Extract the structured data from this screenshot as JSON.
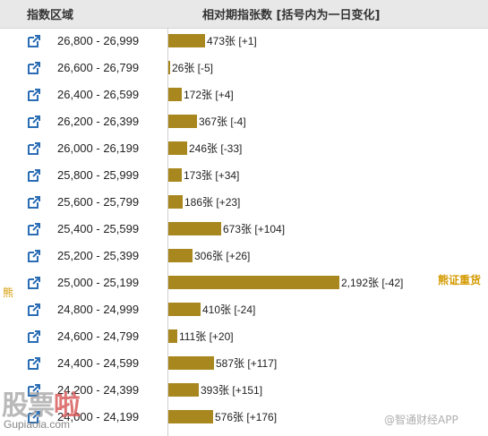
{
  "header": {
    "range_label": "指数区域",
    "chart_label": "相对期指张数 [括号内为一日变化]"
  },
  "chart_data": {
    "type": "bar",
    "orientation": "horizontal",
    "categories": [
      "26,800 - 26,999",
      "26,600 - 26,799",
      "26,400 - 26,599",
      "26,200 - 26,399",
      "26,000 - 26,199",
      "25,800 - 25,999",
      "25,600 - 25,799",
      "25,400 - 25,599",
      "25,200 - 25,399",
      "25,000 - 25,199",
      "24,800 - 24,999",
      "24,600 - 24,799",
      "24,400 - 24,599",
      "24,200 - 24,399",
      "24,000 - 24,199"
    ],
    "values": [
      473,
      26,
      172,
      367,
      246,
      173,
      186,
      673,
      306,
      2192,
      410,
      111,
      587,
      393,
      576
    ],
    "changes": [
      "+1",
      "-5",
      "+4",
      "-4",
      "-33",
      "+34",
      "+23",
      "+104",
      "+26",
      "-42",
      "-24",
      "+20",
      "+117",
      "+151",
      "+176"
    ],
    "value_labels": [
      "473张 [+1]",
      "26张 [-5]",
      "172张 [+4]",
      "367张 [-4]",
      "246张 [-33]",
      "173张 [+34]",
      "186张 [+23]",
      "673张 [+104]",
      "306张 [+26]",
      "2,192张 [-42]",
      "410张 [-24]",
      "111张 [+20]",
      "587张 [+117]",
      "393张 [+151]",
      "576张 [+176]"
    ],
    "xlim": [
      0,
      2192
    ],
    "bar_color": "#a8871e"
  },
  "annotations": {
    "bear_note": "熊证重货",
    "bull_note": "熊"
  },
  "watermarks": {
    "left_cn_1": "股票",
    "left_cn_2": "啦",
    "left_url": "Gupiaola.com",
    "right_text": "@智通财经APP"
  },
  "colors": {
    "bar": "#a8871e",
    "header_bg": "#e8e8e8",
    "note": "#d49a00",
    "link_icon": "#2a6db5"
  },
  "icons": {
    "row_link": "external-link-icon"
  }
}
